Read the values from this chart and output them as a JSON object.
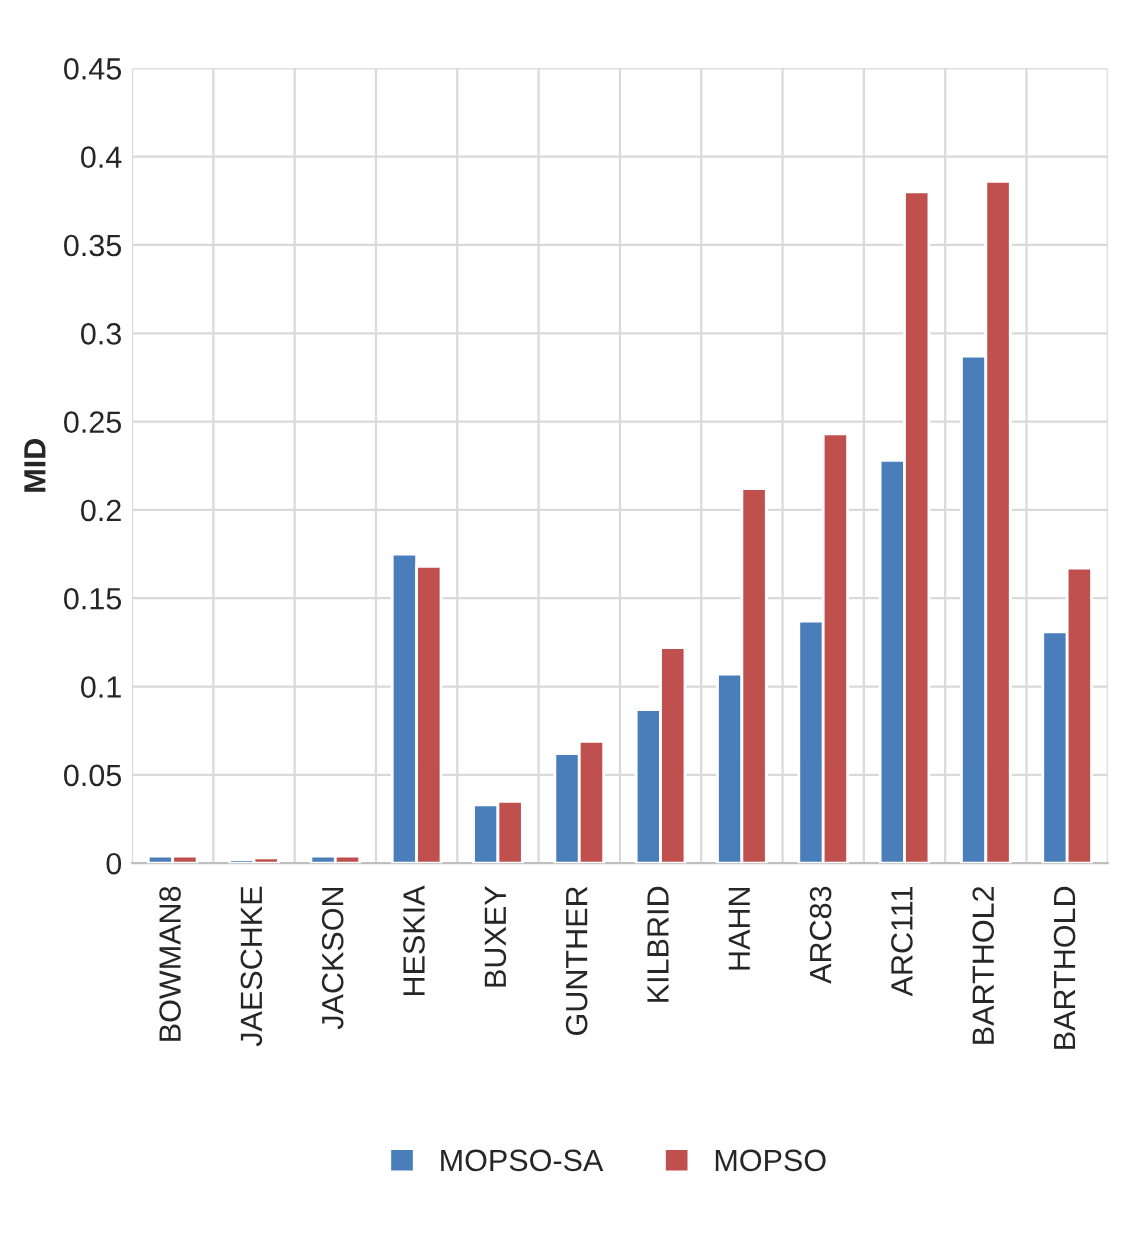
{
  "chart_data": {
    "type": "bar",
    "ylabel": "MID",
    "categories": [
      "BOWMAN8",
      "JAESCHKE",
      "JACKSON",
      "HESKIA",
      "BUXEY",
      "GUNTHER",
      "KILBRID",
      "HAHN",
      "ARC83",
      "ARC111",
      "BARTHOL2",
      "BARTHOLD"
    ],
    "series": [
      {
        "name": "MOPSO-SA",
        "color": "#4a7ebb",
        "values": [
          0.004,
          0.002,
          0.004,
          0.175,
          0.033,
          0.062,
          0.087,
          0.107,
          0.137,
          0.228,
          0.287,
          0.131
        ]
      },
      {
        "name": "MOPSO",
        "color": "#c0504d",
        "values": [
          0.004,
          0.003,
          0.004,
          0.168,
          0.035,
          0.069,
          0.122,
          0.212,
          0.243,
          0.38,
          0.386,
          0.167
        ]
      }
    ],
    "ylim": [
      0,
      0.45
    ],
    "yticks": [
      0,
      0.05,
      0.1,
      0.15,
      0.2,
      0.25,
      0.3,
      0.35,
      0.4,
      0.45
    ],
    "grid": true,
    "legend": "bottom"
  }
}
